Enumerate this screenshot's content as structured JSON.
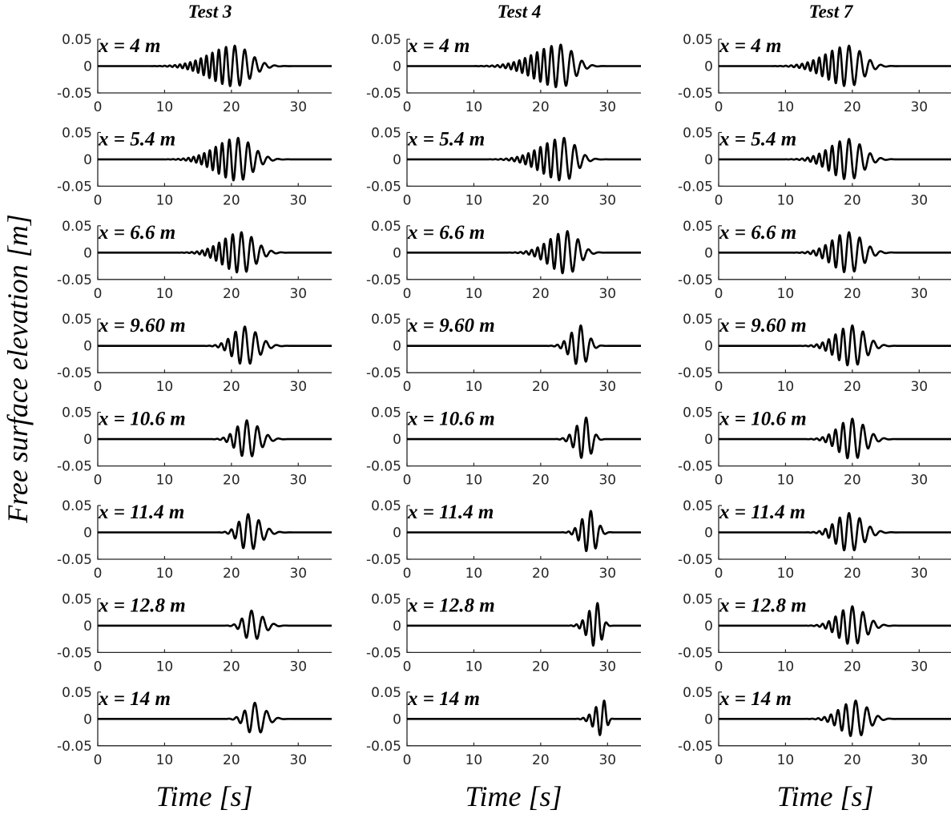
{
  "figure": {
    "ylabel": "Free surface elevation [m]",
    "xlabel": "Time [s]"
  },
  "chart_data": {
    "type": "line",
    "grid": false,
    "xlim": [
      0,
      35
    ],
    "ylim": [
      -0.05,
      0.05
    ],
    "xticks": [
      0,
      10,
      20,
      30
    ],
    "yticks": [
      "0.05",
      "0",
      "-0.05"
    ],
    "xlabel": "Time [s]",
    "ylabel": "Free surface elevation [m]",
    "columns": [
      {
        "title": "Test 3",
        "panels": [
          {
            "label": "x = 4 m",
            "wave": {
              "center": 20.5,
              "start": 8,
              "end": 29,
              "amp": 0.038,
              "period": 1.5
            }
          },
          {
            "label": "x = 5.4 m",
            "wave": {
              "center": 21.0,
              "start": 10,
              "end": 29,
              "amp": 0.04,
              "period": 1.5
            }
          },
          {
            "label": "x = 6.6 m",
            "wave": {
              "center": 21.5,
              "start": 12,
              "end": 29,
              "amp": 0.038,
              "period": 1.5
            }
          },
          {
            "label": "x = 9.60 m",
            "wave": {
              "center": 22.0,
              "start": 16,
              "end": 29,
              "amp": 0.036,
              "period": 1.6
            }
          },
          {
            "label": "x = 10.6 m",
            "wave": {
              "center": 22.3,
              "start": 17,
              "end": 29,
              "amp": 0.035,
              "period": 1.6
            }
          },
          {
            "label": "x = 11.4 m",
            "wave": {
              "center": 22.5,
              "start": 18,
              "end": 29,
              "amp": 0.034,
              "period": 1.6
            }
          },
          {
            "label": "x = 12.8 m",
            "wave": {
              "center": 23.0,
              "start": 19,
              "end": 29,
              "amp": 0.028,
              "period": 1.7
            }
          },
          {
            "label": "x = 14 m",
            "wave": {
              "center": 23.5,
              "start": 19,
              "end": 29,
              "amp": 0.03,
              "period": 1.8
            }
          }
        ]
      },
      {
        "title": "Test 4",
        "panels": [
          {
            "label": "x = 4 m",
            "wave": {
              "center": 23.0,
              "start": 10,
              "end": 30,
              "amp": 0.04,
              "period": 1.6
            }
          },
          {
            "label": "x = 5.4 m",
            "wave": {
              "center": 23.5,
              "start": 12,
              "end": 30,
              "amp": 0.04,
              "period": 1.6
            }
          },
          {
            "label": "x = 6.6 m",
            "wave": {
              "center": 24.0,
              "start": 15,
              "end": 30,
              "amp": 0.04,
              "period": 1.6
            }
          },
          {
            "label": "x = 9.60 m",
            "wave": {
              "center": 26.0,
              "start": 21,
              "end": 30,
              "amp": 0.038,
              "period": 1.6
            }
          },
          {
            "label": "x = 10.6 m",
            "wave": {
              "center": 26.8,
              "start": 22,
              "end": 30,
              "amp": 0.04,
              "period": 1.6
            }
          },
          {
            "label": "x = 11.4 m",
            "wave": {
              "center": 27.5,
              "start": 23,
              "end": 31,
              "amp": 0.04,
              "period": 1.5
            }
          },
          {
            "label": "x = 12.8 m",
            "wave": {
              "center": 28.5,
              "start": 24,
              "end": 31,
              "amp": 0.042,
              "period": 1.4
            }
          },
          {
            "label": "x = 14 m",
            "wave": {
              "center": 29.5,
              "start": 25,
              "end": 31,
              "amp": 0.034,
              "period": 1.4
            }
          }
        ]
      },
      {
        "title": "Test 7",
        "panels": [
          {
            "label": "x = 4 m",
            "wave": {
              "center": 19.5,
              "start": 8,
              "end": 27,
              "amp": 0.038,
              "period": 1.6
            }
          },
          {
            "label": "x = 5.4 m",
            "wave": {
              "center": 19.5,
              "start": 10,
              "end": 27,
              "amp": 0.038,
              "period": 1.6
            }
          },
          {
            "label": "x = 6.6 m",
            "wave": {
              "center": 19.5,
              "start": 11,
              "end": 27,
              "amp": 0.038,
              "period": 1.6
            }
          },
          {
            "label": "x = 9.60 m",
            "wave": {
              "center": 20.0,
              "start": 12,
              "end": 27,
              "amp": 0.038,
              "period": 1.6
            }
          },
          {
            "label": "x = 10.6 m",
            "wave": {
              "center": 20.0,
              "start": 13,
              "end": 27,
              "amp": 0.038,
              "period": 1.6
            }
          },
          {
            "label": "x = 11.4 m",
            "wave": {
              "center": 19.5,
              "start": 13,
              "end": 27,
              "amp": 0.036,
              "period": 1.6
            }
          },
          {
            "label": "x = 12.8 m",
            "wave": {
              "center": 20.0,
              "start": 13,
              "end": 27,
              "amp": 0.036,
              "period": 1.6
            }
          },
          {
            "label": "x = 14 m",
            "wave": {
              "center": 20.5,
              "start": 13,
              "end": 27,
              "amp": 0.034,
              "period": 1.7
            }
          }
        ]
      }
    ]
  }
}
